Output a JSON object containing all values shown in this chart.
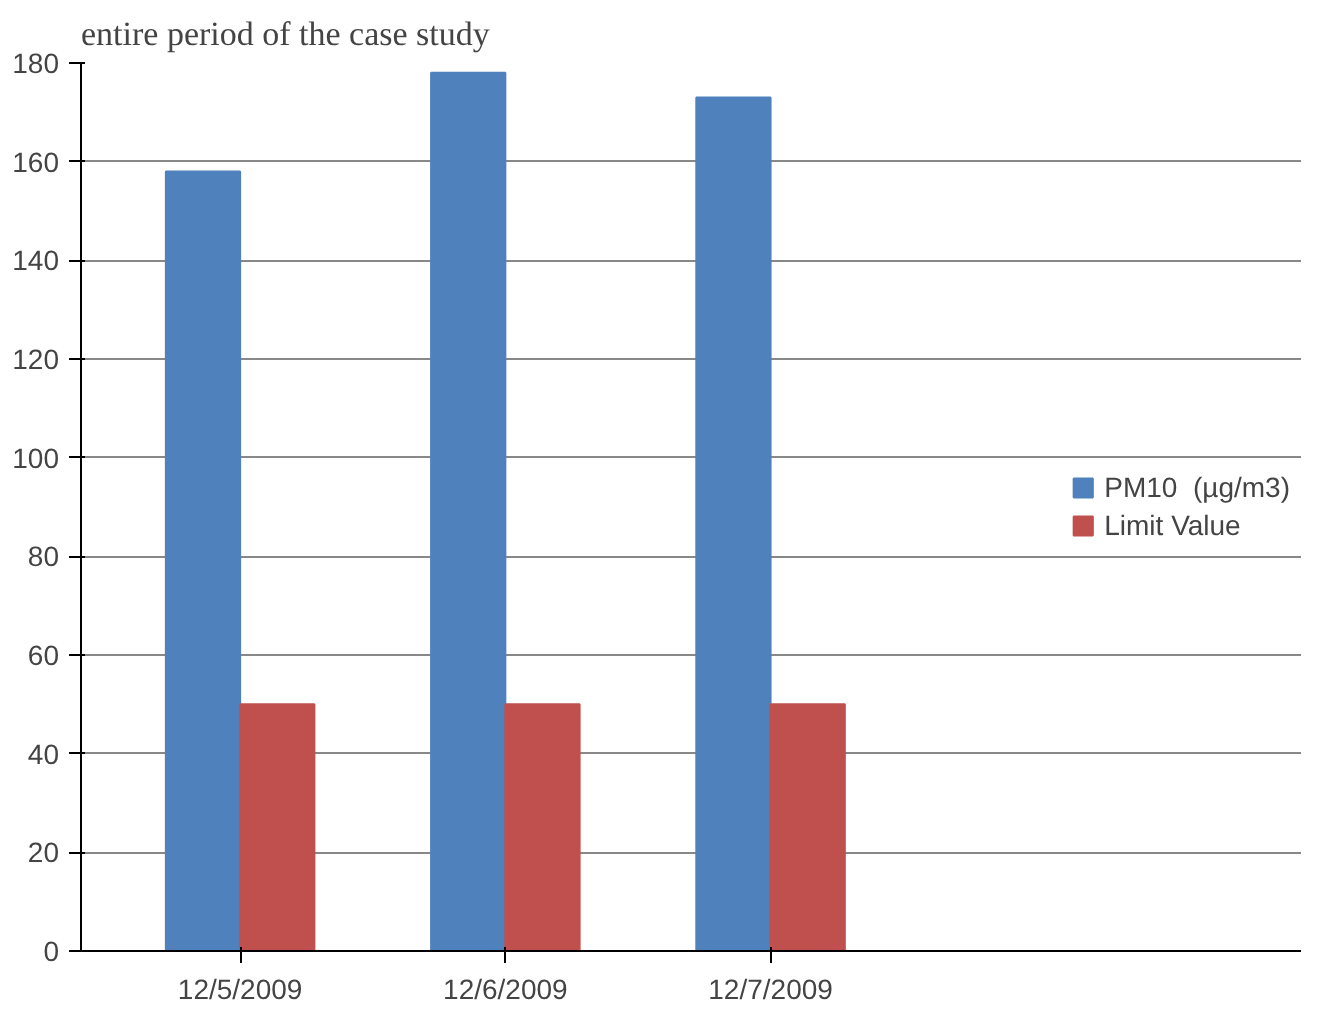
{
  "chart_data": {
    "type": "bar",
    "categories": [
      "12/5/2009",
      "12/6/2009",
      "12/7/2009"
    ],
    "series": [
      {
        "name": "PM10  (µg/m3)",
        "color": "#4f81bd",
        "values": [
          158,
          178,
          173
        ]
      },
      {
        "name": "Limit Value",
        "color": "#c0504d",
        "values": [
          50,
          50,
          50
        ]
      }
    ],
    "ylim": [
      0,
      180
    ],
    "yticks": [
      0,
      20,
      40,
      60,
      80,
      100,
      120,
      140,
      160,
      180
    ],
    "grid": "y",
    "legend": "right",
    "annotations": [
      "entire period of the case study"
    ]
  }
}
